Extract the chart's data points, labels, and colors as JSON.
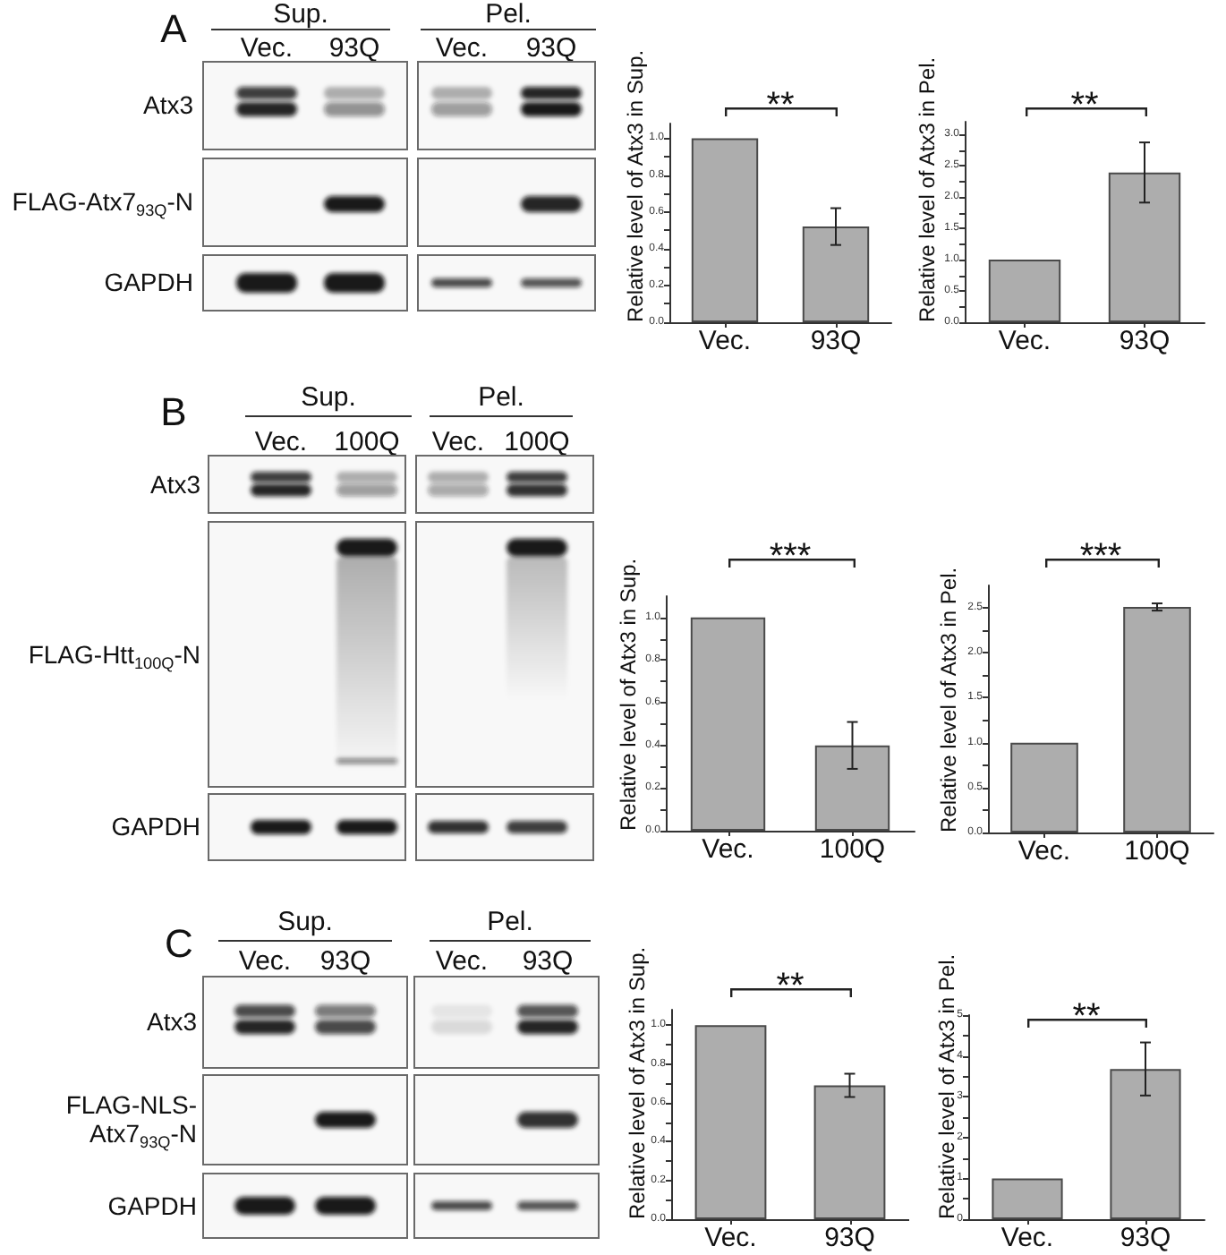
{
  "chart_data": [
    {
      "type": "other",
      "title": "A",
      "annotations": [
        "Sup.",
        "Pel."
      ],
      "categories": [
        "Vec.",
        "93Q"
      ],
      "y_categories": [
        "Atx3",
        "FLAG-Atx7$_{93Q}$-N",
        "GAPDH"
      ]
    },
    {
      "type": "bar",
      "ylabel": "Relative level of Atx3 in Sup.",
      "categories": [
        "Vec.",
        "93Q"
      ],
      "values": [
        1.0,
        0.52
      ],
      "errors": [
        null,
        0.1
      ],
      "color": "#adadad",
      "ylim": [
        0,
        1.08
      ],
      "yticks": [
        {
          "value": 0,
          "label": "0.0"
        },
        {
          "value": 0.1,
          "label": null
        },
        0.2,
        {
          "value": 0.3,
          "label": null
        },
        0.4,
        {
          "value": 0.5,
          "label": null
        },
        0.6,
        {
          "value": 0.7,
          "label": null
        },
        0.8,
        {
          "value": 0.9,
          "label": null
        },
        {
          "value": 1,
          "label": "1.0"
        }
      ],
      "annotations": [
        "**"
      ]
    },
    {
      "type": "bar",
      "ylabel": "Relative level of Atx3 in Pel.",
      "categories": [
        "Vec.",
        "93Q"
      ],
      "values": [
        1.0,
        2.39
      ],
      "errors": [
        null,
        0.48
      ],
      "color": "#adadad",
      "ylim": [
        0,
        3.2
      ],
      "yticks": [
        {
          "value": 0,
          "label": "0.0"
        },
        {
          "value": 0.25,
          "label": null
        },
        0.5,
        {
          "value": 0.75,
          "label": null
        },
        {
          "value": 1,
          "label": "1.0"
        },
        {
          "value": 1.25,
          "label": null
        },
        1.5,
        {
          "value": 1.75,
          "label": null
        },
        {
          "value": 2,
          "label": "2.0"
        },
        {
          "value": 2.25,
          "label": null
        },
        2.5,
        {
          "value": 2.75,
          "label": null
        },
        {
          "value": 3,
          "label": "3.0"
        }
      ],
      "annotations": [
        "**"
      ]
    },
    {
      "type": "other",
      "title": "B",
      "annotations": [
        "Sup.",
        "Pel."
      ],
      "categories": [
        "Vec.",
        "100Q"
      ],
      "y_categories": [
        "Atx3",
        "FLAG-Htt$_{100Q}$-N",
        "GAPDH"
      ]
    },
    {
      "type": "bar",
      "ylabel": "Relative level of Atx3 in Sup.",
      "categories": [
        "Vec.",
        "100Q"
      ],
      "values": [
        1.0,
        0.4
      ],
      "errors": [
        null,
        0.11
      ],
      "color": "#adadad",
      "ylim": [
        0,
        1.1
      ],
      "yticks": [
        {
          "value": 0,
          "label": "0.0"
        },
        {
          "value": 0.1,
          "label": null
        },
        0.2,
        {
          "value": 0.3,
          "label": null
        },
        0.4,
        {
          "value": 0.5,
          "label": null
        },
        0.6,
        {
          "value": 0.7,
          "label": null
        },
        0.8,
        {
          "value": 0.9,
          "label": null
        },
        {
          "value": 1,
          "label": "1.0"
        }
      ],
      "annotations": [
        "***"
      ]
    },
    {
      "type": "bar",
      "ylabel": "Relative level of Atx3 in Pel.",
      "categories": [
        "Vec.",
        "100Q"
      ],
      "values": [
        1.0,
        2.51
      ],
      "errors": [
        null,
        0.04
      ],
      "color": "#adadad",
      "ylim": [
        0,
        2.75
      ],
      "yticks": [
        {
          "value": 0,
          "label": "0.0"
        },
        {
          "value": 0.25,
          "label": null
        },
        0.5,
        {
          "value": 0.75,
          "label": null
        },
        {
          "value": 1,
          "label": "1.0"
        },
        {
          "value": 1.25,
          "label": null
        },
        1.5,
        {
          "value": 1.75,
          "label": null
        },
        {
          "value": 2,
          "label": "2.0"
        },
        {
          "value": 2.25,
          "label": null
        },
        2.5
      ],
      "annotations": [
        "***"
      ]
    },
    {
      "type": "other",
      "title": "C",
      "annotations": [
        "Sup.",
        "Pel."
      ],
      "categories": [
        "Vec.",
        "93Q"
      ],
      "y_categories": [
        "Atx3",
        "FLAG-NLS-Atx7$_{93Q}$-N",
        "GAPDH"
      ]
    },
    {
      "type": "bar",
      "ylabel": "Relative level of Atx3 in Sup.",
      "categories": [
        "Vec.",
        "93Q"
      ],
      "values": [
        1.0,
        0.69
      ],
      "errors": [
        null,
        0.06
      ],
      "color": "#adadad",
      "ylim": [
        0,
        1.08
      ],
      "yticks": [
        {
          "value": 0,
          "label": "0.0"
        },
        {
          "value": 0.1,
          "label": null
        },
        0.2,
        {
          "value": 0.3,
          "label": null
        },
        0.4,
        {
          "value": 0.5,
          "label": null
        },
        0.6,
        {
          "value": 0.7,
          "label": null
        },
        0.8,
        {
          "value": 0.9,
          "label": null
        },
        {
          "value": 1,
          "label": "1.0"
        }
      ],
      "annotations": [
        "**"
      ]
    },
    {
      "type": "bar",
      "ylabel": "Relative level of Atx3 in Pel.",
      "categories": [
        "Vec.",
        "93Q"
      ],
      "values": [
        1.0,
        3.68
      ],
      "errors": [
        null,
        0.65
      ],
      "color": "#adadad",
      "ylim": [
        0,
        5
      ],
      "yticks": [
        0,
        {
          "value": 0.5,
          "label": null
        },
        1,
        {
          "value": 1.5,
          "label": null
        },
        2,
        {
          "value": 2.5,
          "label": null
        },
        3,
        {
          "value": 3.5,
          "label": null
        },
        4,
        {
          "value": 4.5,
          "label": null
        },
        5
      ],
      "annotations": [
        "**"
      ]
    }
  ]
}
